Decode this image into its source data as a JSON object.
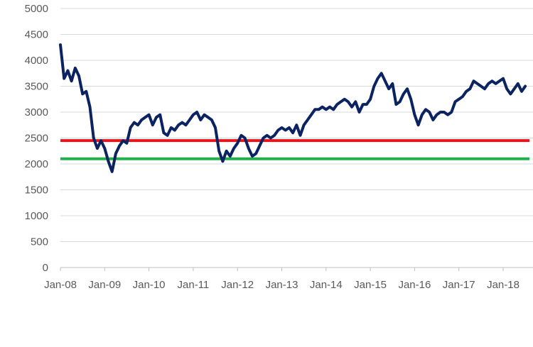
{
  "chart_data": {
    "type": "line",
    "title": "",
    "xlabel": "",
    "ylabel": "",
    "ylim": [
      0,
      5000
    ],
    "xlim": [
      "2008-01",
      "2018-07"
    ],
    "grid": true,
    "legend": "none",
    "y_ticks": [
      0,
      500,
      1000,
      1500,
      2000,
      2500,
      3000,
      3500,
      4000,
      4500,
      5000
    ],
    "x_ticks": [
      {
        "label": "Jan-08",
        "date": "2008-01"
      },
      {
        "label": "Jan-09",
        "date": "2009-01"
      },
      {
        "label": "Jan-10",
        "date": "2010-01"
      },
      {
        "label": "Jan-11",
        "date": "2011-01"
      },
      {
        "label": "Jan-12",
        "date": "2012-01"
      },
      {
        "label": "Jan-13",
        "date": "2013-01"
      },
      {
        "label": "Jan-14",
        "date": "2014-01"
      },
      {
        "label": "Jan-15",
        "date": "2015-01"
      },
      {
        "label": "Jan-16",
        "date": "2016-01"
      },
      {
        "label": "Jan-17",
        "date": "2017-01"
      },
      {
        "label": "Jan-18",
        "date": "2018-01"
      }
    ],
    "series": [
      {
        "color": "#0b2360",
        "points": [
          [
            "2008-01",
            4300
          ],
          [
            "2008-02",
            3650
          ],
          [
            "2008-03",
            3800
          ],
          [
            "2008-04",
            3600
          ],
          [
            "2008-05",
            3850
          ],
          [
            "2008-06",
            3700
          ],
          [
            "2008-07",
            3350
          ],
          [
            "2008-08",
            3400
          ],
          [
            "2008-09",
            3100
          ],
          [
            "2008-10",
            2500
          ],
          [
            "2008-11",
            2300
          ],
          [
            "2008-12",
            2450
          ],
          [
            "2009-01",
            2300
          ],
          [
            "2009-02",
            2050
          ],
          [
            "2009-03",
            1850
          ],
          [
            "2009-04",
            2200
          ],
          [
            "2009-05",
            2350
          ],
          [
            "2009-06",
            2450
          ],
          [
            "2009-07",
            2400
          ],
          [
            "2009-08",
            2700
          ],
          [
            "2009-09",
            2800
          ],
          [
            "2009-10",
            2750
          ],
          [
            "2009-11",
            2850
          ],
          [
            "2009-12",
            2900
          ],
          [
            "2010-01",
            2950
          ],
          [
            "2010-02",
            2750
          ],
          [
            "2010-03",
            2900
          ],
          [
            "2010-04",
            2950
          ],
          [
            "2010-05",
            2600
          ],
          [
            "2010-06",
            2550
          ],
          [
            "2010-07",
            2700
          ],
          [
            "2010-08",
            2650
          ],
          [
            "2010-09",
            2750
          ],
          [
            "2010-10",
            2800
          ],
          [
            "2010-11",
            2750
          ],
          [
            "2010-12",
            2850
          ],
          [
            "2011-01",
            2950
          ],
          [
            "2011-02",
            3000
          ],
          [
            "2011-03",
            2850
          ],
          [
            "2011-04",
            2950
          ],
          [
            "2011-05",
            2900
          ],
          [
            "2011-06",
            2850
          ],
          [
            "2011-07",
            2700
          ],
          [
            "2011-08",
            2250
          ],
          [
            "2011-09",
            2050
          ],
          [
            "2011-10",
            2250
          ],
          [
            "2011-11",
            2150
          ],
          [
            "2011-12",
            2300
          ],
          [
            "2012-01",
            2400
          ],
          [
            "2012-02",
            2550
          ],
          [
            "2012-03",
            2500
          ],
          [
            "2012-04",
            2300
          ],
          [
            "2012-05",
            2150
          ],
          [
            "2012-06",
            2200
          ],
          [
            "2012-07",
            2350
          ],
          [
            "2012-08",
            2500
          ],
          [
            "2012-09",
            2550
          ],
          [
            "2012-10",
            2500
          ],
          [
            "2012-11",
            2550
          ],
          [
            "2012-12",
            2650
          ],
          [
            "2013-01",
            2700
          ],
          [
            "2013-02",
            2650
          ],
          [
            "2013-03",
            2700
          ],
          [
            "2013-04",
            2600
          ],
          [
            "2013-05",
            2750
          ],
          [
            "2013-06",
            2550
          ],
          [
            "2013-07",
            2750
          ],
          [
            "2013-08",
            2850
          ],
          [
            "2013-09",
            2950
          ],
          [
            "2013-10",
            3050
          ],
          [
            "2013-11",
            3050
          ],
          [
            "2013-12",
            3100
          ],
          [
            "2014-01",
            3050
          ],
          [
            "2014-02",
            3100
          ],
          [
            "2014-03",
            3050
          ],
          [
            "2014-04",
            3150
          ],
          [
            "2014-05",
            3200
          ],
          [
            "2014-06",
            3250
          ],
          [
            "2014-07",
            3200
          ],
          [
            "2014-08",
            3100
          ],
          [
            "2014-09",
            3200
          ],
          [
            "2014-10",
            3000
          ],
          [
            "2014-11",
            3150
          ],
          [
            "2014-12",
            3150
          ],
          [
            "2015-01",
            3250
          ],
          [
            "2015-02",
            3500
          ],
          [
            "2015-03",
            3650
          ],
          [
            "2015-04",
            3750
          ],
          [
            "2015-05",
            3600
          ],
          [
            "2015-06",
            3450
          ],
          [
            "2015-07",
            3550
          ],
          [
            "2015-08",
            3150
          ],
          [
            "2015-09",
            3200
          ],
          [
            "2015-10",
            3350
          ],
          [
            "2015-11",
            3450
          ],
          [
            "2015-12",
            3250
          ],
          [
            "2016-01",
            2950
          ],
          [
            "2016-02",
            2750
          ],
          [
            "2016-03",
            2950
          ],
          [
            "2016-04",
            3050
          ],
          [
            "2016-05",
            3000
          ],
          [
            "2016-06",
            2850
          ],
          [
            "2016-07",
            2950
          ],
          [
            "2016-08",
            3000
          ],
          [
            "2016-09",
            3000
          ],
          [
            "2016-10",
            2950
          ],
          [
            "2016-11",
            3000
          ],
          [
            "2016-12",
            3200
          ],
          [
            "2017-01",
            3250
          ],
          [
            "2017-02",
            3300
          ],
          [
            "2017-03",
            3400
          ],
          [
            "2017-04",
            3450
          ],
          [
            "2017-05",
            3600
          ],
          [
            "2017-06",
            3550
          ],
          [
            "2017-07",
            3500
          ],
          [
            "2017-08",
            3450
          ],
          [
            "2017-09",
            3550
          ],
          [
            "2017-10",
            3600
          ],
          [
            "2017-11",
            3550
          ],
          [
            "2017-12",
            3600
          ],
          [
            "2018-01",
            3650
          ],
          [
            "2018-02",
            3450
          ],
          [
            "2018-03",
            3350
          ],
          [
            "2018-04",
            3450
          ],
          [
            "2018-05",
            3550
          ],
          [
            "2018-06",
            3400
          ],
          [
            "2018-07",
            3500
          ]
        ]
      }
    ],
    "reference_lines": [
      {
        "y": 2450,
        "color": "#e8141b"
      },
      {
        "y": 2100,
        "color": "#22b04b"
      }
    ]
  }
}
